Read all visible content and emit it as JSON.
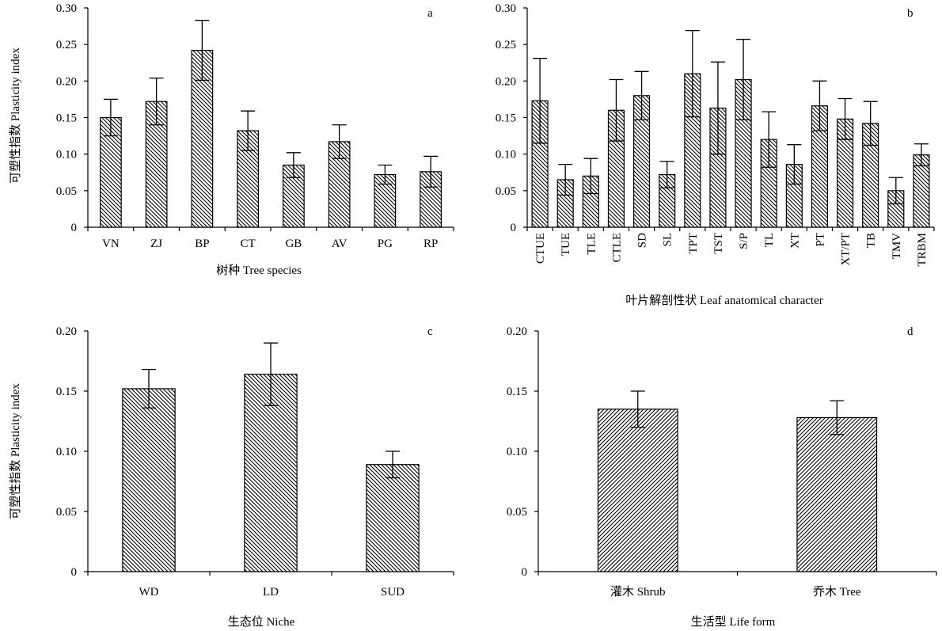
{
  "ylabel_common": "可塑性指数  Plasticity index",
  "chart_data": [
    {
      "type": "bar",
      "panel": "a",
      "xlabel": "树种 Tree species",
      "ylabel": "可塑性指数  Plasticity index",
      "ylim": [
        0,
        0.3
      ],
      "yticks": [
        "0",
        "0.05",
        "0.10",
        "0.15",
        "0.20",
        "0.25",
        "0.30"
      ],
      "categories": [
        "VN",
        "ZJ",
        "BP",
        "CT",
        "GB",
        "AV",
        "PG",
        "RP"
      ],
      "values": [
        0.15,
        0.172,
        0.242,
        0.132,
        0.085,
        0.117,
        0.072,
        0.076
      ],
      "errors": [
        0.025,
        0.032,
        0.041,
        0.027,
        0.017,
        0.023,
        0.013,
        0.021
      ],
      "pattern": "back"
    },
    {
      "type": "bar",
      "panel": "b",
      "xlabel": "叶片解剖性状  Leaf anatomical character",
      "ylabel": "",
      "ylim": [
        0,
        0.3
      ],
      "yticks": [
        "0",
        "0.05",
        "0.10",
        "0.15",
        "0.20",
        "0.25",
        "0.30"
      ],
      "categories": [
        "CTUE",
        "TUE",
        "TLE",
        "CTLE",
        "SD",
        "SL",
        "TPT",
        "TST",
        "S/P",
        "TL",
        "XT",
        "PT",
        "XT/PT",
        "TB",
        "TMV",
        "TRBM"
      ],
      "values": [
        0.173,
        0.065,
        0.07,
        0.16,
        0.18,
        0.072,
        0.21,
        0.163,
        0.202,
        0.12,
        0.086,
        0.166,
        0.148,
        0.142,
        0.05,
        0.099
      ],
      "errors": [
        0.058,
        0.021,
        0.024,
        0.042,
        0.033,
        0.018,
        0.059,
        0.063,
        0.055,
        0.038,
        0.027,
        0.034,
        0.028,
        0.03,
        0.018,
        0.015
      ],
      "pattern": "back"
    },
    {
      "type": "bar",
      "panel": "c",
      "xlabel": "生态位 Niche",
      "ylabel": "可塑性指数  Plasticity index",
      "ylim": [
        0,
        0.2
      ],
      "yticks": [
        "0",
        "0.05",
        "0.10",
        "0.15",
        "0.20"
      ],
      "categories": [
        "WD",
        "LD",
        "SUD"
      ],
      "values": [
        0.152,
        0.164,
        0.089
      ],
      "errors": [
        0.016,
        0.026,
        0.011
      ],
      "pattern": "back"
    },
    {
      "type": "bar",
      "panel": "d",
      "xlabel": "生活型  Life form",
      "ylabel": "",
      "ylim": [
        0,
        0.2
      ],
      "yticks": [
        "0",
        "0.05",
        "0.10",
        "0.15",
        "0.20"
      ],
      "categories": [
        "灌木 Shrub",
        "乔木 Tree"
      ],
      "values": [
        0.135,
        0.128
      ],
      "errors": [
        0.015,
        0.014
      ],
      "pattern": "fwd"
    }
  ]
}
